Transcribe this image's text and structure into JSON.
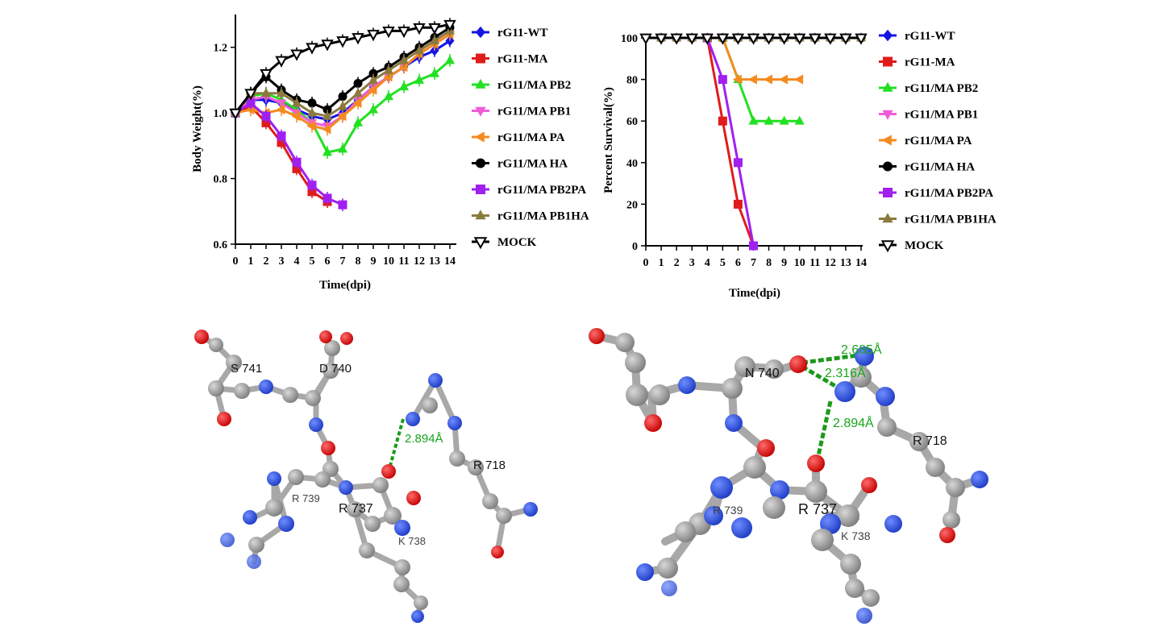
{
  "chart_data": [
    {
      "type": "line",
      "ylabel": "Body Weight(%)",
      "xlabel": "Time(dpi)",
      "xlim": [
        0,
        14
      ],
      "ylim": [
        0.6,
        1.3
      ],
      "xticks": [
        0,
        1,
        2,
        3,
        4,
        5,
        6,
        7,
        8,
        9,
        10,
        11,
        12,
        13,
        14
      ],
      "yticks": [
        0.6,
        0.8,
        1.0,
        1.2
      ],
      "ytick_labels": [
        "0.6",
        "0.8",
        "1.0",
        "1.2"
      ],
      "legend_position": "right",
      "series": [
        {
          "name": "rG11-WT",
          "color": "#1414e6",
          "marker": "diamond",
          "x": [
            0,
            1,
            2,
            3,
            4,
            5,
            6,
            7,
            8,
            9,
            10,
            11,
            12,
            13,
            14
          ],
          "values": [
            1.0,
            1.04,
            1.04,
            1.03,
            1.01,
            0.99,
            0.98,
            1.0,
            1.04,
            1.08,
            1.11,
            1.14,
            1.17,
            1.19,
            1.22
          ]
        },
        {
          "name": "rG11-MA",
          "color": "#e01b1b",
          "marker": "square",
          "x": [
            0,
            1,
            2,
            3,
            4,
            5,
            6
          ],
          "values": [
            1.0,
            1.02,
            0.97,
            0.91,
            0.83,
            0.76,
            0.73
          ]
        },
        {
          "name": "rG11/MA PB2",
          "color": "#22e022",
          "marker": "triangle-up",
          "x": [
            0,
            1,
            2,
            3,
            4,
            5,
            6,
            7,
            8,
            9,
            10,
            11,
            12,
            13,
            14
          ],
          "values": [
            1.0,
            1.05,
            1.06,
            1.04,
            1.01,
            0.97,
            0.88,
            0.89,
            0.97,
            1.01,
            1.05,
            1.08,
            1.1,
            1.12,
            1.16
          ]
        },
        {
          "name": "rG11/MA PB1",
          "color": "#f05cd8",
          "marker": "triangle-down",
          "x": [
            0,
            1,
            2,
            3,
            4,
            5,
            6,
            7,
            8,
            9,
            10,
            11,
            12,
            13,
            14
          ],
          "values": [
            1.0,
            1.04,
            1.05,
            1.03,
            1.0,
            0.97,
            0.96,
            0.99,
            1.04,
            1.08,
            1.11,
            1.14,
            1.18,
            1.21,
            1.24
          ]
        },
        {
          "name": "rG11/MA PA",
          "color": "#f58a1f",
          "marker": "triangle-left",
          "x": [
            0,
            1,
            2,
            3,
            4,
            5,
            6,
            7,
            8,
            9,
            10,
            11,
            12,
            13,
            14
          ],
          "values": [
            1.0,
            1.01,
            1.0,
            1.01,
            0.99,
            0.96,
            0.95,
            0.99,
            1.03,
            1.07,
            1.11,
            1.14,
            1.18,
            1.21,
            1.24
          ]
        },
        {
          "name": "rG11/MA HA",
          "color": "#000000",
          "marker": "circle",
          "x": [
            0,
            1,
            2,
            3,
            4,
            5,
            6,
            7,
            8,
            9,
            10,
            11,
            12,
            13,
            14
          ],
          "values": [
            1.0,
            1.06,
            1.11,
            1.07,
            1.04,
            1.03,
            1.01,
            1.05,
            1.09,
            1.12,
            1.14,
            1.17,
            1.2,
            1.23,
            1.26
          ]
        },
        {
          "name": "rG11/MA PB2PA",
          "color": "#a020f0",
          "marker": "square",
          "x": [
            0,
            1,
            2,
            3,
            4,
            5,
            6,
            7
          ],
          "values": [
            1.0,
            1.03,
            0.99,
            0.93,
            0.85,
            0.78,
            0.74,
            0.72
          ]
        },
        {
          "name": "rG11/MA PB1HA",
          "color": "#8b7a3d",
          "marker": "triangle-up",
          "x": [
            0,
            1,
            2,
            3,
            4,
            5,
            6,
            7,
            8,
            9,
            10,
            11,
            12,
            13,
            14
          ],
          "values": [
            1.0,
            1.06,
            1.06,
            1.06,
            1.03,
            1.0,
            0.99,
            1.02,
            1.06,
            1.1,
            1.13,
            1.16,
            1.19,
            1.22,
            1.25
          ]
        },
        {
          "name": "MOCK",
          "color": "#000000",
          "marker": "triangle-down-open",
          "x": [
            0,
            1,
            2,
            3,
            4,
            5,
            6,
            7,
            8,
            9,
            10,
            11,
            12,
            13,
            14
          ],
          "values": [
            1.0,
            1.06,
            1.12,
            1.16,
            1.18,
            1.2,
            1.21,
            1.22,
            1.23,
            1.24,
            1.25,
            1.25,
            1.26,
            1.26,
            1.27
          ]
        }
      ]
    },
    {
      "type": "line",
      "ylabel": "Percent Survival(%)",
      "xlabel": "Time(dpi)",
      "xlim": [
        0,
        14
      ],
      "ylim": [
        0,
        100
      ],
      "xticks": [
        0,
        1,
        2,
        3,
        4,
        5,
        6,
        7,
        8,
        9,
        10,
        11,
        12,
        13,
        14
      ],
      "yticks": [
        0,
        20,
        40,
        60,
        80,
        100
      ],
      "ytick_labels": [
        "0",
        "20",
        "40",
        "60",
        "80",
        "100"
      ],
      "legend_position": "right",
      "series": [
        {
          "name": "rG11-WT",
          "color": "#1414e6",
          "marker": "diamond",
          "x": [
            1,
            2,
            3,
            4,
            5,
            6,
            7,
            8,
            9,
            10,
            11,
            12,
            13,
            14
          ],
          "values": [
            100,
            100,
            100,
            100,
            100,
            100,
            100,
            100,
            100,
            100,
            100,
            100,
            100,
            100
          ]
        },
        {
          "name": "rG11-MA",
          "color": "#e01b1b",
          "marker": "square",
          "x": [
            4,
            5,
            6,
            7
          ],
          "values": [
            100,
            60,
            20,
            0
          ]
        },
        {
          "name": "rG11/MA PB2",
          "color": "#22e022",
          "marker": "triangle-up",
          "x": [
            5,
            6,
            7,
            8,
            9,
            10
          ],
          "values": [
            100,
            80,
            60,
            60,
            60,
            60
          ]
        },
        {
          "name": "rG11/MA PB1",
          "color": "#f05cd8",
          "marker": "triangle-down",
          "x": [
            1,
            2,
            3,
            4,
            5,
            6,
            7,
            8,
            9,
            10,
            11,
            12,
            13,
            14
          ],
          "values": [
            100,
            100,
            100,
            100,
            100,
            100,
            100,
            100,
            100,
            100,
            100,
            100,
            100,
            100
          ]
        },
        {
          "name": "rG11/MA PA",
          "color": "#f58a1f",
          "marker": "triangle-left",
          "x": [
            5,
            6,
            7,
            8,
            9,
            10
          ],
          "values": [
            100,
            80,
            80,
            80,
            80,
            80
          ]
        },
        {
          "name": "rG11/MA HA",
          "color": "#000000",
          "marker": "circle",
          "x": [
            1,
            2,
            3,
            4,
            5,
            6,
            7,
            8,
            9,
            10,
            11,
            12,
            13,
            14
          ],
          "values": [
            100,
            100,
            100,
            100,
            100,
            100,
            100,
            100,
            100,
            100,
            100,
            100,
            100,
            100
          ]
        },
        {
          "name": "rG11/MA PB2PA",
          "color": "#a020f0",
          "marker": "square",
          "x": [
            4,
            5,
            6,
            7
          ],
          "values": [
            100,
            80,
            40,
            0
          ]
        },
        {
          "name": "rG11/MA PB1HA",
          "color": "#8b7a3d",
          "marker": "triangle-up",
          "x": [
            1,
            2,
            3,
            4,
            5,
            6,
            7,
            8,
            9,
            10,
            11,
            12,
            13,
            14
          ],
          "values": [
            100,
            100,
            100,
            100,
            100,
            100,
            100,
            100,
            100,
            100,
            100,
            100,
            100,
            100
          ]
        },
        {
          "name": "MOCK",
          "color": "#000000",
          "marker": "triangle-down-open",
          "x": [
            0,
            1,
            2,
            3,
            4,
            5,
            6,
            7,
            8,
            9,
            10,
            11,
            12,
            13,
            14
          ],
          "values": [
            100,
            100,
            100,
            100,
            100,
            100,
            100,
            100,
            100,
            100,
            100,
            100,
            100,
            100,
            100
          ]
        }
      ]
    }
  ],
  "structures": {
    "left": {
      "residue_labels": [
        "S 741",
        "D 740",
        "R 718",
        "R 739",
        "R 737",
        "K 738"
      ],
      "hbonds": [
        "2.894Å"
      ]
    },
    "right": {
      "residue_labels": [
        "N 740",
        "R 718",
        "R 739",
        "R 737",
        "K 738"
      ],
      "hbonds": [
        "2.685Å",
        "2.316Å",
        "2.894Å"
      ]
    },
    "colors": {
      "carbon": "#9a9a9a",
      "oxygen": "#e41111",
      "nitrogen": "#2b4fe0",
      "hbond": "#1a9a1a"
    }
  }
}
